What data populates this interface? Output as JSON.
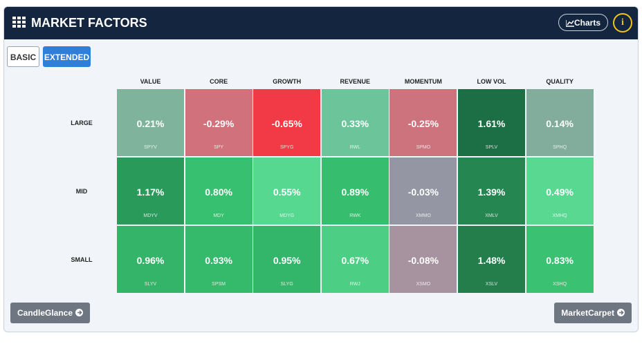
{
  "header": {
    "title": "MARKET FACTORS",
    "charts_button": "Charts",
    "info_button": "i"
  },
  "tabs": [
    {
      "label": "BASIC",
      "active": false
    },
    {
      "label": "EXTENDED",
      "active": true
    }
  ],
  "table": {
    "columns": [
      "VALUE",
      "CORE",
      "GROWTH",
      "REVENUE",
      "MOMENTUM",
      "LOW VOL",
      "QUALITY"
    ],
    "rows": [
      {
        "label": "LARGE",
        "cells": [
          {
            "value": "0.21%",
            "ticker": "SPYV",
            "color": "#7fb39c"
          },
          {
            "value": "-0.29%",
            "ticker": "SPY",
            "color": "#d1717b"
          },
          {
            "value": "-0.65%",
            "ticker": "SPYG",
            "color": "#f23a47"
          },
          {
            "value": "0.33%",
            "ticker": "RWL",
            "color": "#6cc49a"
          },
          {
            "value": "-0.25%",
            "ticker": "SPMO",
            "color": "#cd737d"
          },
          {
            "value": "1.61%",
            "ticker": "SPLV",
            "color": "#1c6e44"
          },
          {
            "value": "0.14%",
            "ticker": "SPHQ",
            "color": "#82ad9c"
          }
        ]
      },
      {
        "label": "MID",
        "cells": [
          {
            "value": "1.17%",
            "ticker": "MDYV",
            "color": "#2a9a5b"
          },
          {
            "value": "0.80%",
            "ticker": "MDY",
            "color": "#37c06f"
          },
          {
            "value": "0.55%",
            "ticker": "MDYG",
            "color": "#56d890"
          },
          {
            "value": "0.89%",
            "ticker": "RWK",
            "color": "#36bd6d"
          },
          {
            "value": "-0.03%",
            "ticker": "XMMO",
            "color": "#9497a3"
          },
          {
            "value": "1.39%",
            "ticker": "XMLV",
            "color": "#258651"
          },
          {
            "value": "0.49%",
            "ticker": "XMHQ",
            "color": "#58d891"
          }
        ]
      },
      {
        "label": "SMALL",
        "cells": [
          {
            "value": "0.96%",
            "ticker": "SLYV",
            "color": "#33b468"
          },
          {
            "value": "0.93%",
            "ticker": "SPSM",
            "color": "#35b96b"
          },
          {
            "value": "0.95%",
            "ticker": "SLYG",
            "color": "#34b66a"
          },
          {
            "value": "0.67%",
            "ticker": "RWJ",
            "color": "#4ccf85"
          },
          {
            "value": "-0.08%",
            "ticker": "XSMO",
            "color": "#a6939f"
          },
          {
            "value": "1.48%",
            "ticker": "XSLV",
            "color": "#237e4c"
          },
          {
            "value": "0.83%",
            "ticker": "XSHQ",
            "color": "#3bc172"
          }
        ]
      }
    ]
  },
  "footer": {
    "left_button": "CandleGlance",
    "right_button": "MarketCarpet"
  }
}
